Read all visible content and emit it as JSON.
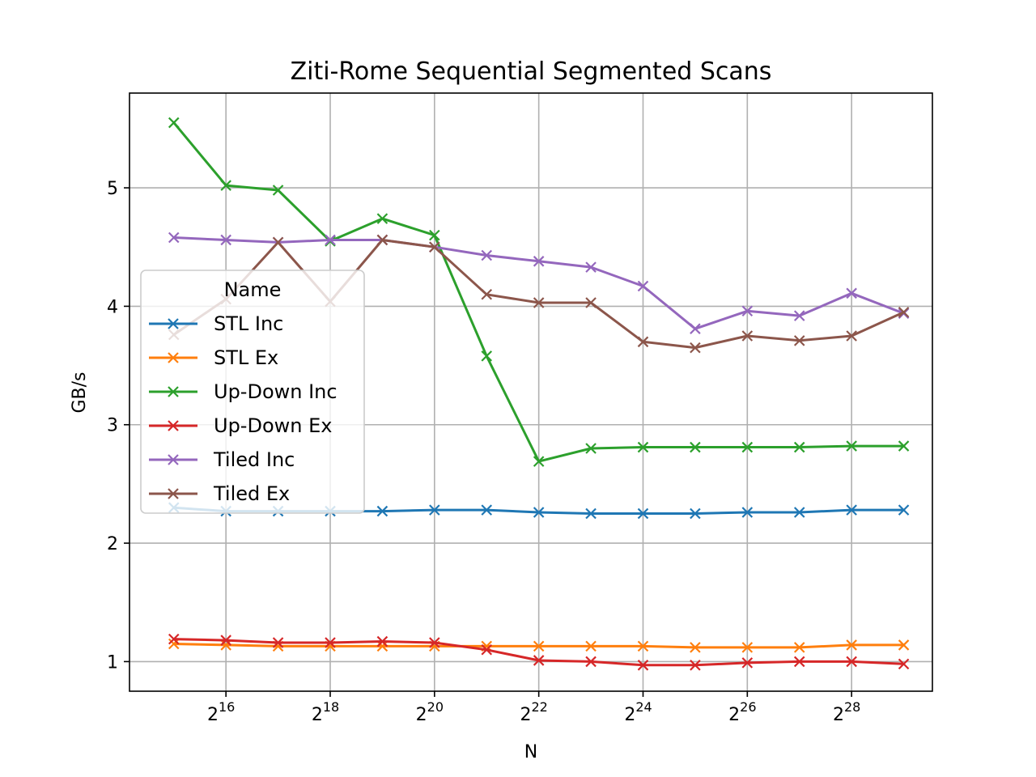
{
  "chart_data": {
    "type": "line",
    "title": "Ziti-Rome Sequential Segmented Scans",
    "xlabel": "N",
    "ylabel": "GB/s",
    "x_scale": "log2",
    "x_exponents": [
      15,
      16,
      17,
      18,
      19,
      20,
      21,
      22,
      23,
      24,
      25,
      26,
      27,
      28,
      29
    ],
    "xlim_exponent": [
      14.15,
      29.55
    ],
    "ylim": [
      0.75,
      5.8
    ],
    "x_ticks": [
      16,
      18,
      20,
      22,
      24,
      26,
      28
    ],
    "x_tick_base": "2",
    "y_ticks": [
      1,
      2,
      3,
      4,
      5
    ],
    "y_tick_labels": [
      "1",
      "2",
      "3",
      "4",
      "5"
    ],
    "grid": true,
    "marker": "x",
    "legend": {
      "title": "Name",
      "placement": "center-left"
    },
    "series": [
      {
        "name": "STL Inc",
        "color": "#1f77b4",
        "values": [
          2.3,
          2.27,
          2.27,
          2.27,
          2.27,
          2.28,
          2.28,
          2.26,
          2.25,
          2.25,
          2.25,
          2.26,
          2.26,
          2.28,
          2.28
        ]
      },
      {
        "name": "STL Ex",
        "color": "#ff7f0e",
        "values": [
          1.15,
          1.14,
          1.13,
          1.13,
          1.13,
          1.13,
          1.13,
          1.13,
          1.13,
          1.13,
          1.12,
          1.12,
          1.12,
          1.14,
          1.14
        ]
      },
      {
        "name": "Up-Down Inc",
        "color": "#2ca02c",
        "values": [
          5.55,
          5.02,
          4.98,
          4.55,
          4.74,
          4.6,
          3.58,
          2.69,
          2.8,
          2.81,
          2.81,
          2.81,
          2.81,
          2.82,
          2.82
        ]
      },
      {
        "name": "Up-Down Ex",
        "color": "#d62728",
        "values": [
          1.19,
          1.18,
          1.16,
          1.16,
          1.17,
          1.16,
          1.1,
          1.01,
          1.0,
          0.97,
          0.97,
          0.99,
          1.0,
          1.0,
          0.98
        ]
      },
      {
        "name": "Tiled Inc",
        "color": "#9467bd",
        "values": [
          4.58,
          4.56,
          4.54,
          4.56,
          4.56,
          4.5,
          4.43,
          4.38,
          4.33,
          4.17,
          3.81,
          3.96,
          3.92,
          4.11,
          3.94
        ]
      },
      {
        "name": "Tiled Ex",
        "color": "#8c564b",
        "values": [
          3.76,
          4.06,
          4.54,
          4.04,
          4.56,
          4.5,
          4.1,
          4.03,
          4.03,
          3.7,
          3.65,
          3.75,
          3.71,
          3.75,
          3.95
        ]
      }
    ]
  }
}
